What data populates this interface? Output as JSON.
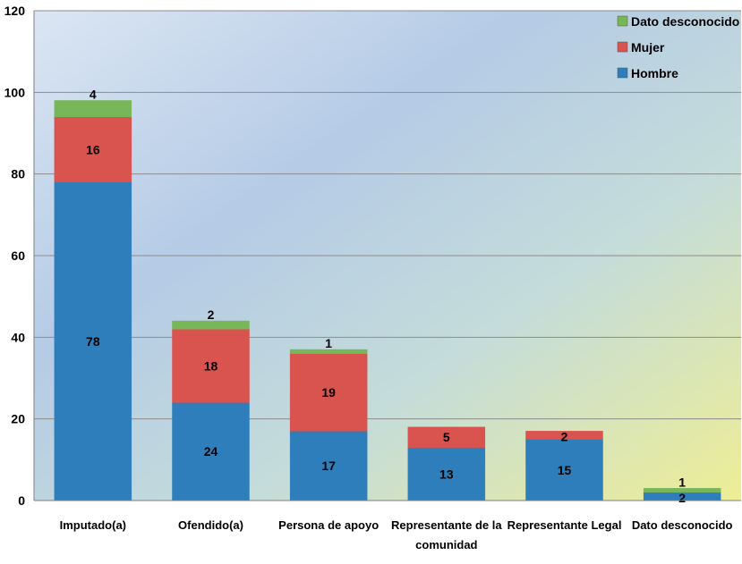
{
  "chart_data": {
    "type": "bar",
    "stacked": true,
    "categories": [
      "Imputado(a)",
      "Ofendido(a)",
      "Persona de apoyo",
      "Representante de la comunidad",
      "Representante Legal",
      "Dato desconocido"
    ],
    "series": [
      {
        "name": "Hombre",
        "values": [
          78,
          24,
          17,
          13,
          15,
          2
        ],
        "color": "#2e7ebc"
      },
      {
        "name": "Mujer",
        "values": [
          16,
          18,
          19,
          5,
          2,
          0
        ],
        "color": "#d9534f"
      },
      {
        "name": "Dato desconocido",
        "values": [
          4,
          2,
          1,
          0,
          0,
          1
        ],
        "color": "#78b65a"
      }
    ],
    "data_labels": [
      {
        "category": 0,
        "series": 0,
        "text": "78"
      },
      {
        "category": 0,
        "series": 1,
        "text": "16"
      },
      {
        "category": 0,
        "series": 2,
        "text": "4"
      },
      {
        "category": 1,
        "series": 0,
        "text": "24"
      },
      {
        "category": 1,
        "series": 1,
        "text": "18"
      },
      {
        "category": 1,
        "series": 2,
        "text": "2"
      },
      {
        "category": 2,
        "series": 0,
        "text": "17"
      },
      {
        "category": 2,
        "series": 1,
        "text": "19"
      },
      {
        "category": 2,
        "series": 2,
        "text": "1"
      },
      {
        "category": 3,
        "series": 0,
        "text": "13"
      },
      {
        "category": 3,
        "series": 1,
        "text": "5"
      },
      {
        "category": 4,
        "series": 0,
        "text": "15"
      },
      {
        "category": 4,
        "series": 1,
        "text": "2"
      },
      {
        "category": 5,
        "series": 0,
        "text": "2"
      },
      {
        "category": 5,
        "series": 2,
        "text": "1"
      }
    ],
    "ylim": [
      0,
      120
    ],
    "yticks": [
      0,
      20,
      40,
      60,
      80,
      100,
      120
    ],
    "grid": true,
    "legend_position": "top-right",
    "legend_order": [
      "Dato desconocido",
      "Mujer",
      "Hombre"
    ]
  }
}
